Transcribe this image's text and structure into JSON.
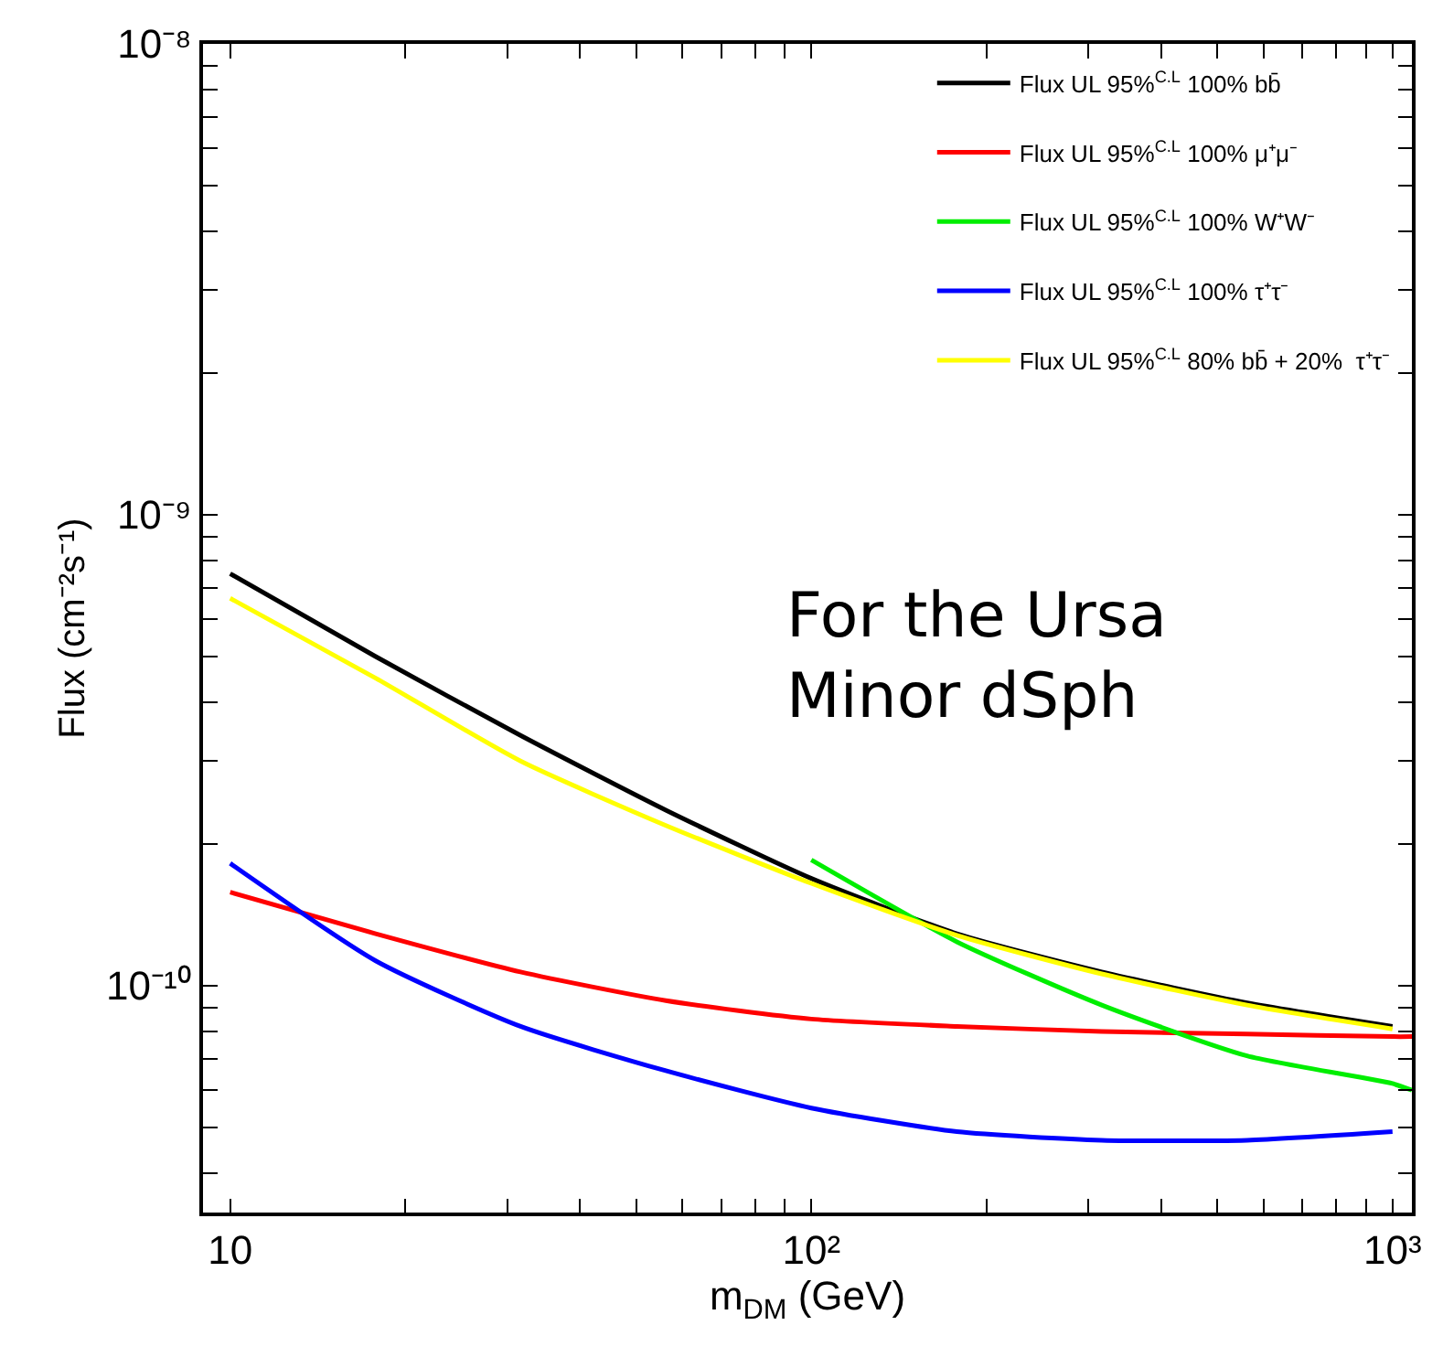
{
  "chart_data": {
    "type": "line",
    "xlabel": "m$_{DM}$ (GeV)",
    "ylabel": "Flux (cm⁻²s⁻¹)",
    "x": [
      10,
      17.8,
      31.6,
      56.2,
      100,
      178,
      316,
      562,
      1000
    ],
    "series": [
      {
        "name": "Flux UL 95%$^{C.L}$ 100% bb̄",
        "color": "#000000",
        "values": [
          7.5e-10,
          5e-10,
          3.4e-10,
          2.36e-10,
          1.69e-10,
          1.29e-10,
          1.07e-10,
          9.2e-11,
          8.2e-11
        ]
      },
      {
        "name": "Flux UL 95%$^{C.L}$ 100% μ⁺μ⁻",
        "color": "#ff0000",
        "x": [
          10,
          17.8,
          31.6,
          56.2,
          100,
          178,
          316,
          562,
          1000,
          1080
        ],
        "values": [
          1.58e-10,
          1.29e-10,
          1.07e-10,
          9.3e-11,
          8.5e-11,
          8.2e-11,
          8e-11,
          7.9e-11,
          7.8e-11,
          7.8e-11
        ]
      },
      {
        "name": "Flux UL 95%$^{C.L}$ 100% W⁺W⁻",
        "color": "#00ee00",
        "x": [
          100,
          178,
          316,
          562,
          1000,
          1080
        ],
        "values": [
          1.85e-10,
          1.24e-10,
          9.1e-11,
          7.1e-11,
          6.2e-11,
          6e-11
        ]
      },
      {
        "name": "Flux UL 95%$^{C.L}$ 100% τ⁺τ⁻",
        "color": "#0000ff",
        "values": [
          1.82e-10,
          1.13e-10,
          8.2e-11,
          6.6e-11,
          5.5e-11,
          4.9e-11,
          4.7e-11,
          4.7e-11,
          4.9e-11
        ]
      },
      {
        "name": "Flux UL 95%$^{C.L}$ 80% bb̄ + 20%  τ⁺τ⁻",
        "color": "#ffff00",
        "values": [
          6.65e-10,
          4.5e-10,
          3e-10,
          2.19e-10,
          1.65e-10,
          1.28e-10,
          1.06e-10,
          9.1e-11,
          8.1e-11
        ]
      }
    ],
    "log": "xy",
    "xlim": [
      8.98,
      1080
    ],
    "ylim": [
      3.3e-11,
      1e-08
    ],
    "xticks": [
      {
        "value": 10,
        "label": "10"
      },
      {
        "value": 20,
        "label": null
      },
      {
        "value": 30,
        "label": null
      },
      {
        "value": 40,
        "label": null
      },
      {
        "value": 50,
        "label": null
      },
      {
        "value": 60,
        "label": null
      },
      {
        "value": 70,
        "label": null
      },
      {
        "value": 80,
        "label": null
      },
      {
        "value": 90,
        "label": null
      },
      {
        "value": 100,
        "label": "10²"
      },
      {
        "value": 200,
        "label": null
      },
      {
        "value": 300,
        "label": null
      },
      {
        "value": 400,
        "label": null
      },
      {
        "value": 500,
        "label": null
      },
      {
        "value": 600,
        "label": null
      },
      {
        "value": 700,
        "label": null
      },
      {
        "value": 800,
        "label": null
      },
      {
        "value": 900,
        "label": null
      },
      {
        "value": 1000,
        "label": "10³"
      }
    ],
    "yticks": [
      {
        "value": 4e-11,
        "label": null
      },
      {
        "value": 5e-11,
        "label": null
      },
      {
        "value": 6e-11,
        "label": null
      },
      {
        "value": 7e-11,
        "label": null
      },
      {
        "value": 8e-11,
        "label": null
      },
      {
        "value": 9e-11,
        "label": null
      },
      {
        "value": 1e-10,
        "label": "10⁻¹⁰"
      },
      {
        "value": 2e-10,
        "label": null
      },
      {
        "value": 3e-10,
        "label": null
      },
      {
        "value": 4e-10,
        "label": null
      },
      {
        "value": 5e-10,
        "label": null
      },
      {
        "value": 6e-10,
        "label": null
      },
      {
        "value": 7e-10,
        "label": null
      },
      {
        "value": 8e-10,
        "label": null
      },
      {
        "value": 9e-10,
        "label": null
      },
      {
        "value": 1e-09,
        "label": "10⁻⁹"
      },
      {
        "value": 2e-09,
        "label": null
      },
      {
        "value": 3e-09,
        "label": null
      },
      {
        "value": 4e-09,
        "label": null
      },
      {
        "value": 5e-09,
        "label": null
      },
      {
        "value": 6e-09,
        "label": null
      },
      {
        "value": 7e-09,
        "label": null
      },
      {
        "value": 8e-09,
        "label": null
      },
      {
        "value": 9e-09,
        "label": null
      },
      {
        "value": 1e-08,
        "label": "10⁻⁸"
      }
    ],
    "legend": "top right",
    "marker": "none",
    "line_style": "solid",
    "annotations": [
      "For the Ursa\nMinor dSph"
    ]
  }
}
